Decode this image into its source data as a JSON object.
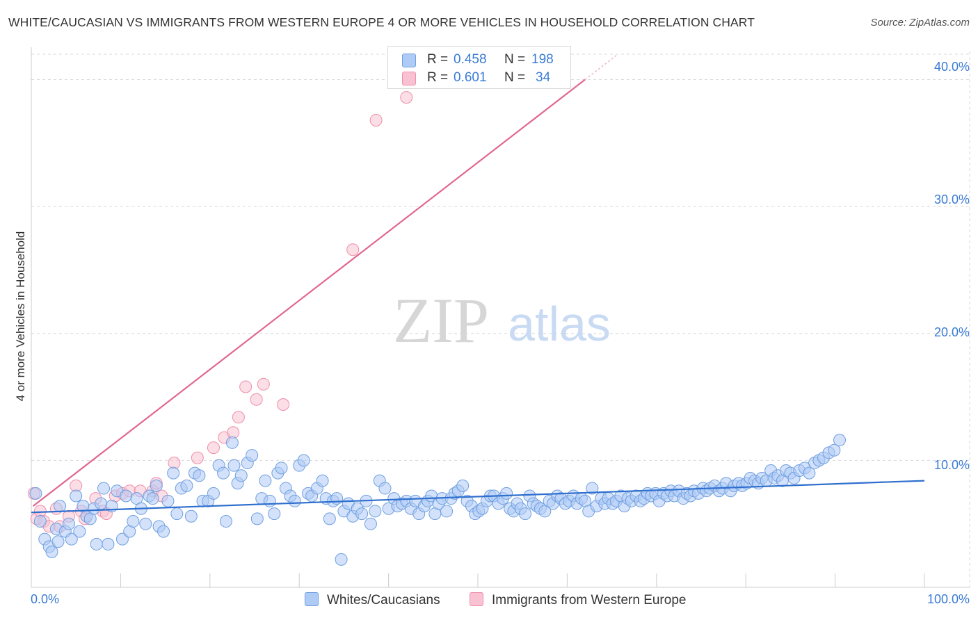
{
  "title": "WHITE/CAUCASIAN VS IMMIGRANTS FROM WESTERN EUROPE 4 OR MORE VEHICLES IN HOUSEHOLD CORRELATION CHART",
  "source": "Source: ZipAtlas.com",
  "watermark": {
    "zip": "ZIP",
    "atlas": "atlas"
  },
  "legend": {
    "r_label": "R =",
    "n_label": "N =",
    "series": [
      {
        "name": "Whites/Caucasians",
        "r": "0.458",
        "n": "198"
      },
      {
        "name": "Immigrants from Western Europe",
        "r": "0.601",
        "n": "34"
      }
    ]
  },
  "colors": {
    "blue_fill": "#aecbf5",
    "blue_stroke": "#6f9fe0",
    "blue_line": "#2f6fce",
    "pink_fill": "#f8c2d2",
    "pink_stroke": "#ee8fab",
    "pink_line": "#e0678f",
    "axis_text": "#3a7bd5",
    "grid": "#d9d9d9"
  },
  "chart_data": {
    "type": "scatter",
    "title": "WHITE/CAUCASIAN VS IMMIGRANTS FROM WESTERN EUROPE 4 OR MORE VEHICLES IN HOUSEHOLD CORRELATION CHART",
    "xlabel": "",
    "ylabel": "4 or more Vehicles in Household",
    "xlim": [
      0,
      100
    ],
    "ylim": [
      0,
      42
    ],
    "x_tick_labels": [
      "0.0%",
      "100.0%"
    ],
    "y_ticks": [
      10,
      20,
      30,
      40
    ],
    "y_tick_labels": [
      "10.0%",
      "20.0%",
      "30.0%",
      "40.0%"
    ],
    "grid": true,
    "legend_position": "top-center",
    "series": [
      {
        "name": "Whites/Caucasians",
        "r": 0.458,
        "n": 198,
        "trend": {
          "x": [
            0,
            100
          ],
          "y": [
            5.9,
            8.4
          ]
        },
        "points": [
          [
            0.5,
            7.4
          ],
          [
            1.0,
            5.2
          ],
          [
            1.5,
            3.8
          ],
          [
            2.0,
            3.2
          ],
          [
            2.3,
            2.8
          ],
          [
            2.8,
            4.6
          ],
          [
            3.0,
            3.6
          ],
          [
            3.2,
            6.4
          ],
          [
            3.8,
            4.4
          ],
          [
            4.2,
            5.0
          ],
          [
            4.5,
            3.8
          ],
          [
            5.0,
            7.2
          ],
          [
            5.4,
            4.4
          ],
          [
            5.8,
            6.4
          ],
          [
            6.2,
            5.6
          ],
          [
            6.6,
            5.4
          ],
          [
            7.0,
            6.2
          ],
          [
            7.3,
            3.4
          ],
          [
            7.8,
            6.6
          ],
          [
            8.1,
            7.8
          ],
          [
            8.6,
            3.4
          ],
          [
            9.0,
            6.4
          ],
          [
            9.6,
            7.6
          ],
          [
            10.2,
            3.8
          ],
          [
            10.6,
            7.2
          ],
          [
            11.0,
            4.4
          ],
          [
            11.4,
            5.2
          ],
          [
            11.8,
            7.0
          ],
          [
            12.3,
            6.2
          ],
          [
            12.8,
            5.0
          ],
          [
            13.2,
            7.2
          ],
          [
            13.6,
            7.0
          ],
          [
            14.0,
            8.0
          ],
          [
            14.3,
            4.8
          ],
          [
            14.8,
            4.4
          ],
          [
            15.3,
            6.8
          ],
          [
            15.9,
            9.0
          ],
          [
            16.3,
            5.8
          ],
          [
            16.8,
            7.8
          ],
          [
            17.4,
            8.0
          ],
          [
            17.9,
            5.6
          ],
          [
            18.3,
            9.0
          ],
          [
            18.8,
            8.8
          ],
          [
            19.2,
            6.8
          ],
          [
            19.8,
            6.8
          ],
          [
            20.4,
            7.4
          ],
          [
            21.0,
            9.6
          ],
          [
            21.5,
            9.0
          ],
          [
            21.8,
            5.2
          ],
          [
            22.5,
            11.4
          ],
          [
            22.7,
            9.6
          ],
          [
            23.1,
            8.2
          ],
          [
            23.5,
            8.8
          ],
          [
            24.2,
            9.8
          ],
          [
            24.7,
            10.4
          ],
          [
            25.3,
            5.4
          ],
          [
            25.8,
            7.0
          ],
          [
            26.2,
            8.4
          ],
          [
            26.7,
            6.8
          ],
          [
            27.2,
            5.8
          ],
          [
            27.6,
            9.0
          ],
          [
            28.0,
            9.4
          ],
          [
            28.5,
            7.8
          ],
          [
            29.0,
            7.2
          ],
          [
            29.5,
            6.8
          ],
          [
            30.0,
            9.6
          ],
          [
            30.5,
            10.0
          ],
          [
            31.0,
            7.4
          ],
          [
            31.4,
            7.2
          ],
          [
            32.0,
            7.8
          ],
          [
            32.6,
            8.4
          ],
          [
            33.0,
            7.0
          ],
          [
            33.4,
            5.4
          ],
          [
            33.8,
            6.8
          ],
          [
            34.2,
            7.0
          ],
          [
            34.7,
            2.2
          ],
          [
            35.0,
            6.0
          ],
          [
            35.5,
            6.6
          ],
          [
            36.0,
            5.6
          ],
          [
            36.5,
            6.2
          ],
          [
            37.0,
            5.8
          ],
          [
            37.5,
            6.8
          ],
          [
            38.0,
            5.0
          ],
          [
            38.5,
            6.0
          ],
          [
            39.0,
            8.4
          ],
          [
            39.6,
            7.8
          ],
          [
            40.0,
            6.2
          ],
          [
            40.6,
            7.0
          ],
          [
            41.0,
            6.4
          ],
          [
            41.5,
            6.6
          ],
          [
            42.0,
            6.8
          ],
          [
            42.5,
            6.2
          ],
          [
            43.0,
            6.8
          ],
          [
            43.4,
            5.8
          ],
          [
            44.0,
            6.4
          ],
          [
            44.4,
            6.8
          ],
          [
            44.8,
            7.2
          ],
          [
            45.2,
            5.8
          ],
          [
            45.6,
            6.6
          ],
          [
            46.0,
            7.0
          ],
          [
            46.5,
            6.0
          ],
          [
            47.0,
            7.0
          ],
          [
            47.4,
            7.4
          ],
          [
            47.8,
            7.6
          ],
          [
            48.3,
            8.0
          ],
          [
            48.8,
            6.8
          ],
          [
            49.3,
            6.4
          ],
          [
            49.7,
            5.8
          ],
          [
            50.1,
            6.0
          ],
          [
            50.5,
            6.2
          ],
          [
            51.0,
            6.8
          ],
          [
            51.4,
            7.2
          ],
          [
            51.8,
            7.2
          ],
          [
            52.3,
            6.6
          ],
          [
            52.8,
            7.0
          ],
          [
            53.2,
            7.4
          ],
          [
            53.6,
            6.2
          ],
          [
            54.0,
            6.0
          ],
          [
            54.4,
            6.6
          ],
          [
            54.8,
            6.2
          ],
          [
            55.3,
            5.8
          ],
          [
            55.8,
            7.2
          ],
          [
            56.2,
            6.6
          ],
          [
            56.6,
            6.4
          ],
          [
            57.0,
            6.2
          ],
          [
            57.5,
            6.0
          ],
          [
            58.0,
            6.8
          ],
          [
            58.4,
            6.6
          ],
          [
            58.9,
            7.2
          ],
          [
            59.3,
            7.0
          ],
          [
            59.8,
            6.6
          ],
          [
            60.2,
            6.8
          ],
          [
            60.7,
            7.2
          ],
          [
            61.1,
            6.6
          ],
          [
            61.6,
            7.0
          ],
          [
            62.0,
            6.8
          ],
          [
            62.4,
            6.0
          ],
          [
            62.8,
            7.8
          ],
          [
            63.3,
            6.4
          ],
          [
            63.8,
            7.0
          ],
          [
            64.2,
            6.6
          ],
          [
            64.6,
            7.0
          ],
          [
            65.1,
            6.6
          ],
          [
            65.5,
            6.8
          ],
          [
            66.0,
            7.2
          ],
          [
            66.4,
            6.4
          ],
          [
            66.8,
            7.0
          ],
          [
            67.2,
            6.8
          ],
          [
            67.7,
            7.2
          ],
          [
            68.2,
            6.8
          ],
          [
            68.6,
            7.0
          ],
          [
            69.0,
            7.4
          ],
          [
            69.4,
            7.2
          ],
          [
            69.9,
            7.4
          ],
          [
            70.3,
            6.8
          ],
          [
            70.8,
            7.4
          ],
          [
            71.2,
            7.2
          ],
          [
            71.6,
            7.6
          ],
          [
            72.0,
            7.2
          ],
          [
            72.5,
            7.6
          ],
          [
            73.0,
            7.0
          ],
          [
            73.4,
            7.4
          ],
          [
            73.8,
            7.2
          ],
          [
            74.2,
            7.6
          ],
          [
            74.7,
            7.4
          ],
          [
            75.2,
            7.8
          ],
          [
            75.6,
            7.6
          ],
          [
            76.0,
            7.8
          ],
          [
            76.5,
            8.0
          ],
          [
            77.0,
            7.6
          ],
          [
            77.4,
            7.8
          ],
          [
            77.8,
            8.2
          ],
          [
            78.3,
            7.6
          ],
          [
            78.7,
            8.0
          ],
          [
            79.2,
            8.2
          ],
          [
            79.6,
            8.0
          ],
          [
            80.1,
            8.2
          ],
          [
            80.5,
            8.6
          ],
          [
            81.0,
            8.4
          ],
          [
            81.4,
            8.2
          ],
          [
            81.8,
            8.6
          ],
          [
            82.3,
            8.4
          ],
          [
            82.8,
            9.2
          ],
          [
            83.2,
            8.6
          ],
          [
            83.6,
            8.8
          ],
          [
            84.1,
            8.4
          ],
          [
            84.5,
            9.2
          ],
          [
            85.0,
            9.0
          ],
          [
            85.4,
            8.6
          ],
          [
            86.0,
            9.2
          ],
          [
            86.6,
            9.4
          ],
          [
            87.1,
            9.0
          ],
          [
            87.7,
            9.8
          ],
          [
            88.2,
            10.0
          ],
          [
            88.7,
            10.2
          ],
          [
            89.3,
            10.6
          ],
          [
            89.9,
            10.8
          ],
          [
            90.5,
            11.6
          ]
        ]
      },
      {
        "name": "Immigrants from Western Europe",
        "r": 0.601,
        "n": 34,
        "trend": {
          "x": [
            0.2,
            62.0
          ],
          "y": [
            6.4,
            40.0
          ]
        },
        "points": [
          [
            0.3,
            7.4
          ],
          [
            0.6,
            5.4
          ],
          [
            1.0,
            6.0
          ],
          [
            1.4,
            5.2
          ],
          [
            2.0,
            4.8
          ],
          [
            2.8,
            6.2
          ],
          [
            3.2,
            4.8
          ],
          [
            4.2,
            5.6
          ],
          [
            5.0,
            8.0
          ],
          [
            5.6,
            6.0
          ],
          [
            6.0,
            5.4
          ],
          [
            7.2,
            7.0
          ],
          [
            8.0,
            6.0
          ],
          [
            8.4,
            5.8
          ],
          [
            9.4,
            7.2
          ],
          [
            10.2,
            7.4
          ],
          [
            11.0,
            7.6
          ],
          [
            12.2,
            7.6
          ],
          [
            13.6,
            7.6
          ],
          [
            14.0,
            8.2
          ],
          [
            14.6,
            7.2
          ],
          [
            16.0,
            9.8
          ],
          [
            18.6,
            10.2
          ],
          [
            20.4,
            11.0
          ],
          [
            21.6,
            11.8
          ],
          [
            22.6,
            12.2
          ],
          [
            23.2,
            13.4
          ],
          [
            24.0,
            15.8
          ],
          [
            25.2,
            14.8
          ],
          [
            26.0,
            16.0
          ],
          [
            28.2,
            14.4
          ],
          [
            36.0,
            26.6
          ],
          [
            38.6,
            36.8
          ],
          [
            42.0,
            38.6
          ]
        ]
      }
    ]
  }
}
